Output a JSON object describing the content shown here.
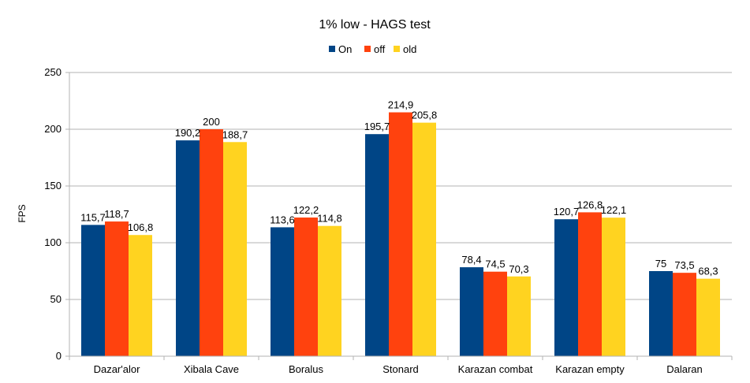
{
  "chart_data": {
    "type": "bar",
    "title": "1% low - HAGS test",
    "xlabel": "",
    "ylabel": "FPS",
    "ylim": [
      0,
      250
    ],
    "yticks": [
      0,
      50,
      100,
      150,
      200,
      250
    ],
    "grid": true,
    "legend_position": "top-center",
    "categories": [
      "Dazar'alor",
      "Xibala Cave",
      "Boralus",
      "Stonard",
      "Karazan combat",
      "Karazan empty",
      "Dalaran"
    ],
    "series": [
      {
        "name": "On",
        "color": "#004586",
        "values": [
          115.7,
          190.2,
          113.6,
          195.7,
          78.4,
          120.7,
          75
        ],
        "labels": [
          "115,7",
          "190,2",
          "113,6",
          "195,7",
          "78,4",
          "120,7",
          "75"
        ]
      },
      {
        "name": "off",
        "color": "#ff420e",
        "values": [
          118.7,
          200,
          122.2,
          214.9,
          74.5,
          126.8,
          73.5
        ],
        "labels": [
          "118,7",
          "200",
          "122,2",
          "214,9",
          "74,5",
          "126,8",
          "73,5"
        ]
      },
      {
        "name": "old",
        "color": "#ffd320",
        "values": [
          106.8,
          188.7,
          114.8,
          205.8,
          70.3,
          122.1,
          68.3
        ],
        "labels": [
          "106,8",
          "188,7",
          "114,8",
          "205,8",
          "70,3",
          "122,1",
          "68,3"
        ]
      }
    ]
  }
}
